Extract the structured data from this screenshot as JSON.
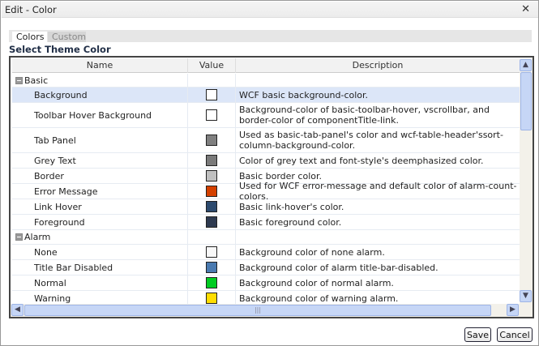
{
  "window": {
    "title": "Edit - Color",
    "close_icon": "close-icon"
  },
  "tabs": [
    {
      "label": "Colors",
      "active": true
    },
    {
      "label": "Custom",
      "active": false
    }
  ],
  "heading": "Select Theme Color",
  "columns": {
    "name": "Name",
    "value": "Value",
    "description": "Description"
  },
  "rows": [
    {
      "type": "group",
      "name": "Basic"
    },
    {
      "type": "item",
      "name": "Background",
      "color": "#ffffff",
      "description": "WCF basic background-color.",
      "selected": true
    },
    {
      "type": "item",
      "name": "Toolbar Hover Background",
      "color": "#ffffff",
      "description": "Background-color of basic-toolbar-hover, vscrollbar, and border-color of componentTitle-link."
    },
    {
      "type": "item",
      "name": "Tab Panel",
      "color": "#808080",
      "description": "Used as basic-tab-panel's color and wcf-table-header'ssort-column-background-color."
    },
    {
      "type": "item",
      "name": "Grey Text",
      "color": "#7a7a7a",
      "description": "Color of grey text and font-style's deemphasized color."
    },
    {
      "type": "item",
      "name": "Border",
      "color": "#c0c0c0",
      "description": "Basic border color."
    },
    {
      "type": "item",
      "name": "Error Message",
      "color": "#d44000",
      "description": "Used for WCF error-message and default color of alarm-count-colors."
    },
    {
      "type": "item",
      "name": "Link Hover",
      "color": "#2c4a6e",
      "description": "Basic link-hover's color."
    },
    {
      "type": "item",
      "name": "Foreground",
      "color": "#2e3a50",
      "description": "Basic foreground color."
    },
    {
      "type": "group",
      "name": "Alarm"
    },
    {
      "type": "item",
      "name": "None",
      "color": "#f8f8f8",
      "description": "Background color of none alarm."
    },
    {
      "type": "item",
      "name": "Title Bar Disabled",
      "color": "#4a7ab0",
      "description": "Background color of alarm title-bar-disabled."
    },
    {
      "type": "item",
      "name": "Normal",
      "color": "#00cc22",
      "description": "Background color of normal alarm."
    },
    {
      "type": "item",
      "name": "Warning",
      "color": "#ffdd00",
      "description": "Background color of warning alarm."
    }
  ],
  "buttons": {
    "save": "Save",
    "cancel": "Cancel"
  }
}
